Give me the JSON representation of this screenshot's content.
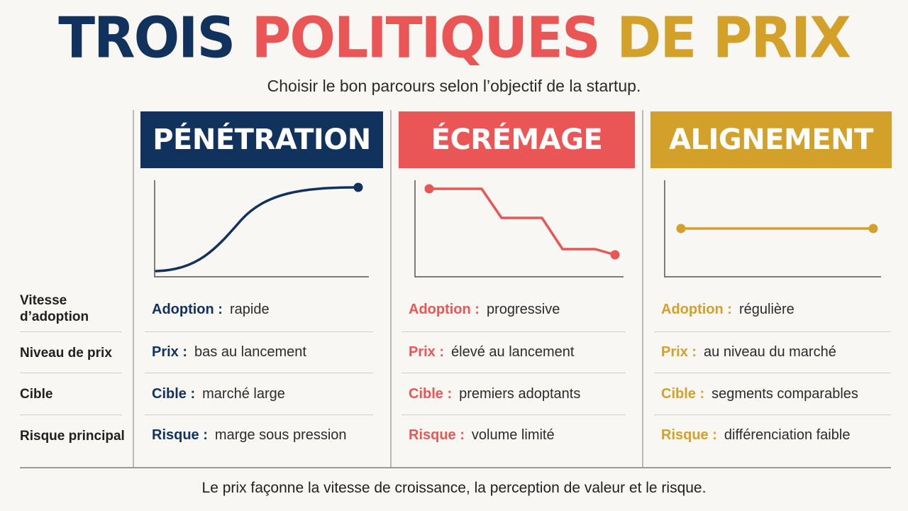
{
  "title": {
    "part1": "TROIS",
    "part2": "POLITIQUES",
    "part3": "DE PRIX"
  },
  "subtitle": "Choisir le bon parcours selon l’objectif de la startup.",
  "row_labels": [
    "Vitesse d’adoption",
    "Niveau de prix",
    "Cible",
    "Risque principal"
  ],
  "columns": [
    {
      "header": "PÉNÉTRATION",
      "color": "#12325e",
      "curve": "s-curve-rising",
      "rows": [
        {
          "key": "Adoption :",
          "value": "rapide"
        },
        {
          "key": "Prix :",
          "value": "bas au lancement"
        },
        {
          "key": "Cible :",
          "value": "marché large"
        },
        {
          "key": "Risque :",
          "value": "marge sous pression"
        }
      ]
    },
    {
      "header": "ÉCRÉMAGE",
      "color": "#ea5656",
      "curve": "stepped-decline",
      "rows": [
        {
          "key": "Adoption :",
          "value": "progressive"
        },
        {
          "key": "Prix :",
          "value": "élevé au lancement"
        },
        {
          "key": "Cible :",
          "value": "premiers adoptants"
        },
        {
          "key": "Risque :",
          "value": "volume limité"
        }
      ]
    },
    {
      "header": "ALIGNEMENT",
      "color": "#d3a12a",
      "curve": "flat-line",
      "rows": [
        {
          "key": "Adoption :",
          "value": "régulière"
        },
        {
          "key": "Prix :",
          "value": "au niveau du marché"
        },
        {
          "key": "Cible :",
          "value": "segments comparables"
        },
        {
          "key": "Risque :",
          "value": "différenciation faible"
        }
      ]
    }
  ],
  "footer": "Le prix façonne la vitesse de croissance, la perception de valeur et le risque."
}
